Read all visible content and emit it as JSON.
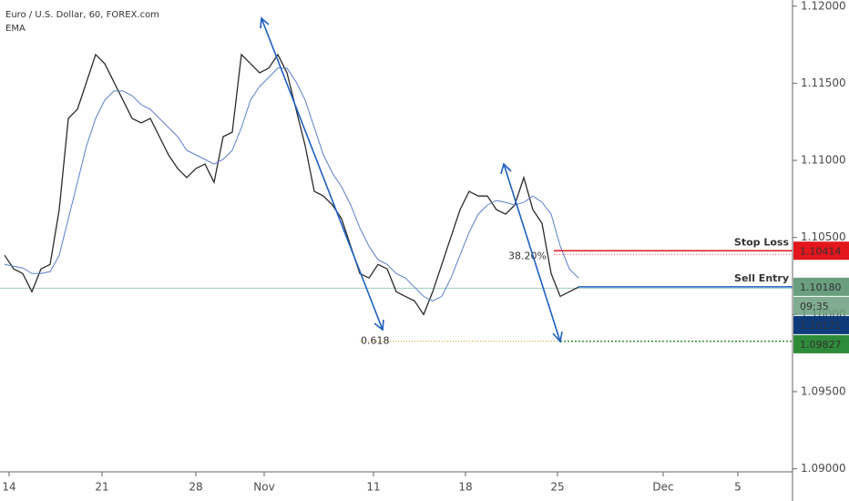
{
  "chart_data": {
    "type": "line",
    "title": "Euro / U.S. Dollar, 60, FOREX.com",
    "indicator": "EMA",
    "xlim": [
      0,
      87
    ],
    "ylim": [
      1.0898,
      1.1204
    ],
    "xticks": [
      {
        "value": 1,
        "label": "14"
      },
      {
        "value": 11.2,
        "label": "21"
      },
      {
        "value": 21.5,
        "label": "28"
      },
      {
        "value": 29,
        "label": "Nov"
      },
      {
        "value": 41,
        "label": "11"
      },
      {
        "value": 51.1,
        "label": "18"
      },
      {
        "value": 61.2,
        "label": "25"
      },
      {
        "value": 72.8,
        "label": "Dec"
      },
      {
        "value": 81,
        "label": "5"
      }
    ],
    "yticks": [
      {
        "value": 1.12,
        "label": "1.12000"
      },
      {
        "value": 1.115,
        "label": "1.11500"
      },
      {
        "value": 1.11,
        "label": "1.11000"
      },
      {
        "value": 1.105,
        "label": "1.10500"
      },
      {
        "value": 1.1,
        "label": "1.10000"
      },
      {
        "value": 1.095,
        "label": "1.09500"
      },
      {
        "value": 1.09,
        "label": "1.09000"
      }
    ],
    "series": [
      {
        "color": "#2b2b2b",
        "values": [
          1.10385,
          1.10296,
          1.10266,
          1.10148,
          1.10296,
          1.10325,
          1.1068,
          1.11272,
          1.11331,
          1.11509,
          1.11686,
          1.11627,
          1.11509,
          1.11391,
          1.11272,
          1.11243,
          1.11272,
          1.11154,
          1.11036,
          1.10947,
          1.10888,
          1.10947,
          1.10976,
          1.10858,
          1.11154,
          1.11183,
          1.11686,
          1.11627,
          1.11568,
          1.11598,
          1.11686,
          1.11568,
          1.11331,
          1.11095,
          1.10799,
          1.10769,
          1.1071,
          1.10621,
          1.10444,
          1.10266,
          1.10237,
          1.10325,
          1.10296,
          1.10148,
          1.10118,
          1.10089,
          1.1,
          1.10148,
          1.10325,
          1.10503,
          1.1068,
          1.10799,
          1.10769,
          1.10769,
          1.1068,
          1.10651,
          1.1071,
          1.10888,
          1.1068,
          1.10592,
          1.10266,
          1.10118,
          1.10148,
          1.10178
        ]
      },
      {
        "name": "EMA",
        "color": "#5a7fc8",
        "values": [
          1.10325,
          1.10314,
          1.10302,
          1.10266,
          1.10266,
          1.10278,
          1.10385,
          1.10621,
          1.10858,
          1.11095,
          1.11272,
          1.11391,
          1.1145,
          1.1145,
          1.1142,
          1.11361,
          1.11331,
          1.11272,
          1.11213,
          1.11154,
          1.11065,
          1.11036,
          1.11006,
          1.10976,
          1.11006,
          1.11065,
          1.11213,
          1.11391,
          1.11479,
          1.11538,
          1.11598,
          1.11598,
          1.11509,
          1.11391,
          1.11213,
          1.11036,
          1.10917,
          1.10828,
          1.1071,
          1.10562,
          1.10444,
          1.10355,
          1.10325,
          1.10266,
          1.10237,
          1.10178,
          1.10118,
          1.10089,
          1.10118,
          1.10237,
          1.10385,
          1.10533,
          1.10651,
          1.1071,
          1.1074,
          1.10728,
          1.1071,
          1.10728,
          1.10769,
          1.10728,
          1.10651,
          1.10444,
          1.10296,
          1.10237
        ]
      }
    ],
    "levels": [
      {
        "name": "Stop Loss",
        "value": 1.10414,
        "value_label": "1.10414",
        "color": "#e3161c"
      },
      {
        "name": "Sell Entry",
        "value": 1.1018,
        "value_label": "1.10180",
        "color": "#1760c4"
      }
    ],
    "entry_box_color": "#6a9f7e",
    "countdown": "09:35",
    "last_price": {
      "value": 1.10171,
      "label": "1.10171",
      "color": "#0d3b7a"
    },
    "fib": {
      "label": "0.618",
      "value": 1.09827,
      "value_label": "1.09827",
      "color": "#d4a017",
      "box_color": "#2e8b3a"
    },
    "retracement": "38.20%"
  }
}
